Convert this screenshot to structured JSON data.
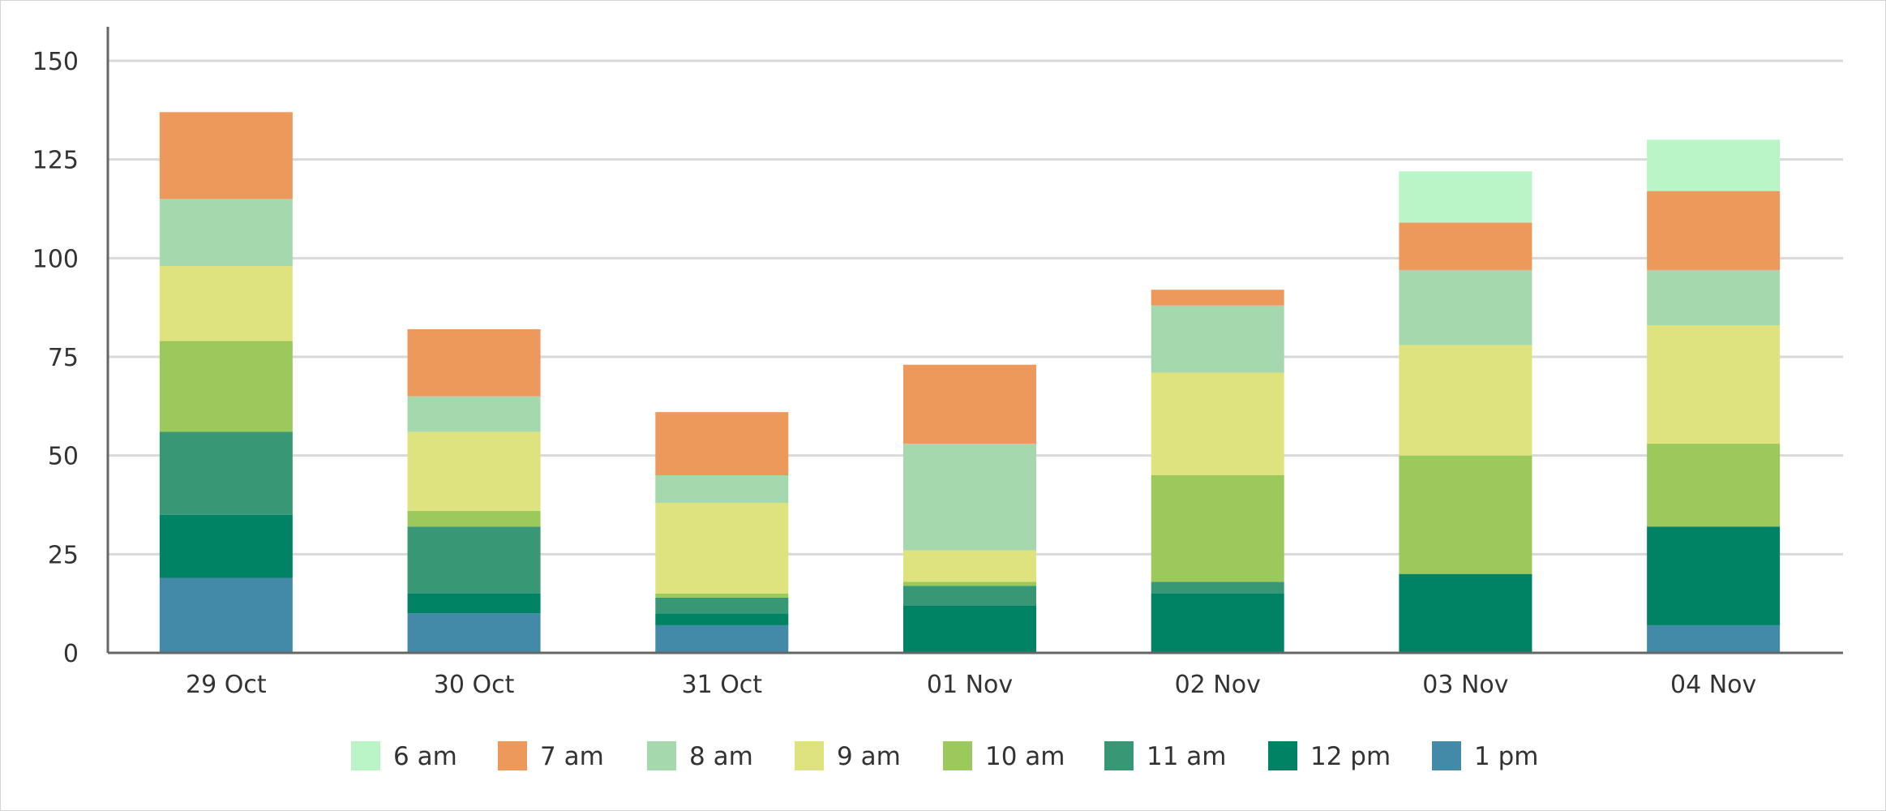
{
  "chart_data": {
    "type": "bar",
    "stacked": true,
    "categories": [
      "29 Oct",
      "30 Oct",
      "31 Oct",
      "01 Nov",
      "02 Nov",
      "03 Nov",
      "04 Nov"
    ],
    "ylim": [
      0,
      150
    ],
    "yticks": [
      0,
      25,
      50,
      75,
      100,
      125,
      150
    ],
    "grid": true,
    "legend_position": "bottom",
    "series": [
      {
        "name": "1 pm",
        "color": "#4389a8",
        "values": [
          19,
          10,
          7,
          0,
          0,
          0,
          7
        ]
      },
      {
        "name": "12 pm",
        "color": "#008265",
        "values": [
          16,
          5,
          3,
          12,
          15,
          20,
          25
        ]
      },
      {
        "name": "11 am",
        "color": "#389774",
        "values": [
          21,
          17,
          4,
          5,
          3,
          0,
          0
        ]
      },
      {
        "name": "10 am",
        "color": "#9bc95c",
        "values": [
          23,
          4,
          1,
          1,
          27,
          30,
          21
        ]
      },
      {
        "name": "9 am",
        "color": "#dfe37d",
        "values": [
          19,
          20,
          23,
          8,
          26,
          28,
          30
        ]
      },
      {
        "name": "8 am",
        "color": "#a6d8ad",
        "values": [
          17,
          9,
          7,
          27,
          17,
          19,
          14
        ]
      },
      {
        "name": "7 am",
        "color": "#ed995b",
        "values": [
          22,
          17,
          16,
          20,
          4,
          12,
          20
        ]
      },
      {
        "name": "6 am",
        "color": "#b9f5c7",
        "values": [
          0,
          0,
          0,
          0,
          0,
          13,
          13
        ]
      }
    ]
  }
}
